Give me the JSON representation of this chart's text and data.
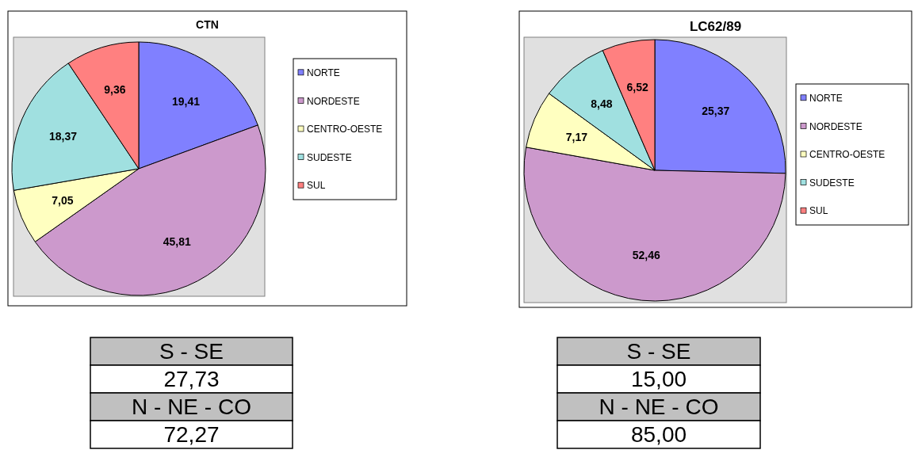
{
  "chart_data": [
    {
      "type": "pie",
      "title": "CTN",
      "categories": [
        "NORTE",
        "NORDESTE",
        "CENTRO-OESTE",
        "SUDESTE",
        "SUL"
      ],
      "values": [
        19.41,
        45.81,
        7.05,
        18.37,
        9.36
      ],
      "colors": [
        "#8080ff",
        "#cc99cc",
        "#ffffc0",
        "#a0e0e0",
        "#ff8080"
      ],
      "value_labels": [
        "19,41",
        "45,81",
        "7,05",
        "18,37",
        "9,36"
      ],
      "legend": "right",
      "annotations": [
        "S - SE",
        "27,73",
        "N - NE - CO",
        "72,27"
      ]
    },
    {
      "type": "pie",
      "title": "LC62/89",
      "categories": [
        "NORTE",
        "NORDESTE",
        "CENTRO-OESTE",
        "SUDESTE",
        "SUL"
      ],
      "values": [
        25.37,
        52.46,
        7.17,
        8.48,
        6.52
      ],
      "colors": [
        "#8080ff",
        "#cc99cc",
        "#ffffc0",
        "#a0e0e0",
        "#ff8080"
      ],
      "value_labels": [
        "25,37",
        "52,46",
        "7,17",
        "8,48",
        "6,52"
      ],
      "legend": "right",
      "annotations": [
        "S - SE",
        "15,00",
        "N - NE - CO",
        "85,00"
      ]
    }
  ]
}
